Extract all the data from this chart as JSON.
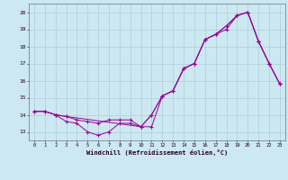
{
  "xlabel": "Windchill (Refroidissement éolien,°C)",
  "background_color": "#cce8f0",
  "grid_color": "#b0ccd8",
  "line_color": "#990099",
  "xlim": [
    -0.5,
    23.5
  ],
  "ylim": [
    12.5,
    20.5
  ],
  "x_ticks": [
    0,
    1,
    2,
    3,
    4,
    5,
    6,
    7,
    8,
    9,
    10,
    11,
    12,
    13,
    14,
    15,
    16,
    17,
    18,
    19,
    20,
    21,
    22,
    23
  ],
  "y_ticks": [
    13,
    14,
    15,
    16,
    17,
    18,
    19,
    20
  ],
  "series": [
    {
      "x": [
        0,
        1,
        2,
        3,
        4,
        5,
        6,
        7,
        8,
        9,
        10,
        11,
        12,
        13,
        14,
        15,
        16,
        17,
        18,
        19,
        20,
        21,
        22,
        23
      ],
      "y": [
        14.2,
        14.2,
        14.0,
        13.6,
        13.5,
        13.0,
        12.8,
        13.0,
        13.5,
        13.5,
        13.3,
        14.0,
        15.1,
        15.4,
        16.7,
        17.0,
        18.4,
        18.7,
        19.0,
        19.8,
        20.0,
        18.3,
        17.0,
        15.8
      ]
    },
    {
      "x": [
        0,
        1,
        2,
        3,
        4,
        5,
        6,
        7,
        8,
        9,
        10,
        11,
        12,
        13,
        14,
        15,
        16,
        17,
        18,
        19,
        20,
        21,
        22,
        23
      ],
      "y": [
        14.2,
        14.2,
        14.0,
        13.9,
        13.7,
        13.6,
        13.5,
        13.7,
        13.7,
        13.7,
        13.3,
        13.3,
        15.1,
        15.4,
        16.7,
        17.0,
        18.4,
        18.7,
        19.2,
        19.8,
        20.0,
        18.3,
        17.0,
        15.8
      ]
    },
    {
      "x": [
        0,
        1,
        2,
        3,
        10,
        11,
        12,
        13,
        14,
        15,
        16,
        17,
        18,
        19,
        20,
        21,
        22,
        23
      ],
      "y": [
        14.2,
        14.2,
        14.0,
        13.9,
        13.3,
        14.0,
        15.1,
        15.4,
        16.7,
        17.0,
        18.4,
        18.7,
        19.2,
        19.8,
        20.0,
        18.3,
        17.0,
        15.8
      ]
    }
  ]
}
